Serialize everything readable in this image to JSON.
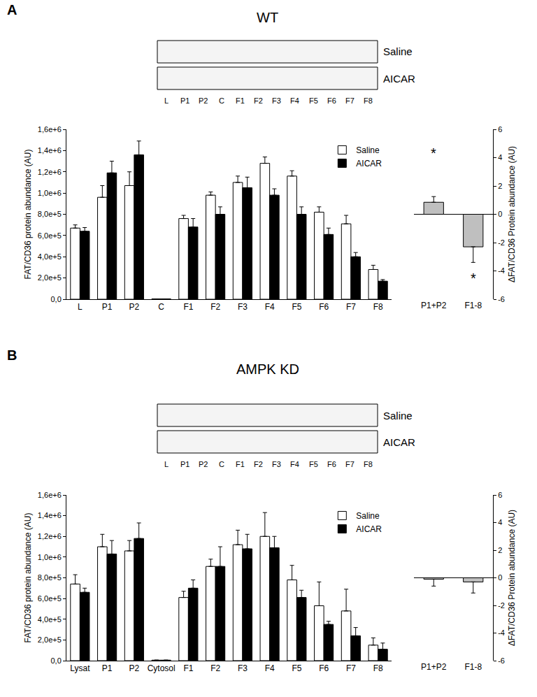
{
  "chart_data": [
    {
      "type": "bar",
      "panel": "A",
      "title": "WT",
      "blot_rows": [
        "Saline",
        "AICAR"
      ],
      "blot_lanes": [
        "L",
        "P1",
        "P2",
        "C",
        "F1",
        "F2",
        "F3",
        "F4",
        "F5",
        "F6",
        "F7",
        "F8"
      ],
      "categories": [
        "L",
        "P1",
        "P2",
        "C",
        "F1",
        "F2",
        "F3",
        "F4",
        "F5",
        "F6",
        "F7",
        "F8"
      ],
      "y_label": "FAT/CD36 protein abundance (AU)",
      "ylim": [
        0,
        1600000
      ],
      "yticks": [
        {
          "value": 0,
          "label": "0,0"
        },
        {
          "value": 200000,
          "label": "2,0e+5"
        },
        {
          "value": 400000,
          "label": "4,0e+5"
        },
        {
          "value": 600000,
          "label": "6,0e+5"
        },
        {
          "value": 800000,
          "label": "8,0e+5"
        },
        {
          "value": 1000000,
          "label": "1,0e+6"
        },
        {
          "value": 1200000,
          "label": "1,2e+6"
        },
        {
          "value": 1400000,
          "label": "1,4e+6"
        },
        {
          "value": 1600000,
          "label": "1,6e+6"
        }
      ],
      "legend": "upper right",
      "series": [
        {
          "name": "Saline",
          "color": "#ffffff",
          "values": [
            670000,
            960000,
            1070000,
            3000,
            760000,
            980000,
            1100000,
            1280000,
            1160000,
            820000,
            710000,
            280000
          ],
          "errors": [
            30000,
            110000,
            130000,
            0,
            30000,
            30000,
            60000,
            60000,
            50000,
            50000,
            80000,
            40000
          ]
        },
        {
          "name": "AICAR",
          "color": "#000000",
          "values": [
            640000,
            1190000,
            1360000,
            3000,
            680000,
            800000,
            1050000,
            980000,
            800000,
            610000,
            400000,
            170000
          ],
          "errors": [
            35000,
            110000,
            130000,
            0,
            80000,
            70000,
            100000,
            60000,
            70000,
            60000,
            40000,
            15000
          ]
        }
      ]
    },
    {
      "type": "bar",
      "panel": "A",
      "categories": [
        "P1+P2",
        "F1-8"
      ],
      "y_label": "ΔFAT/CD36 Protein abundance (AU)",
      "ylim": [
        -6,
        6
      ],
      "yticks": [
        -6,
        -4,
        -2,
        0,
        2,
        4,
        6
      ],
      "color": "#bfbfbf",
      "values": [
        0.85,
        -2.3
      ],
      "errors": [
        0.4,
        1.1
      ],
      "annotations": [
        {
          "text": "*",
          "category": "P1+P2",
          "y": 4.3
        },
        {
          "text": "*",
          "category": "F1-8",
          "y": -4.5
        }
      ]
    },
    {
      "type": "bar",
      "panel": "B",
      "title": "AMPK KD",
      "blot_rows": [
        "Saline",
        "AICAR"
      ],
      "blot_lanes": [
        "L",
        "P1",
        "P2",
        "C",
        "F1",
        "F2",
        "F3",
        "F4",
        "F5",
        "F6",
        "F7",
        "F8"
      ],
      "categories": [
        "Lysat",
        "P1",
        "P2",
        "Cytosol",
        "F1",
        "F2",
        "F3",
        "F4",
        "F5",
        "F6",
        "F7",
        "F8"
      ],
      "y_label": "FAT/CD36 protein abundance (AU)",
      "ylim": [
        0,
        1600000
      ],
      "yticks": [
        {
          "value": 0,
          "label": "0,0"
        },
        {
          "value": 200000,
          "label": "2,0e+5"
        },
        {
          "value": 400000,
          "label": "4,0e+5"
        },
        {
          "value": 600000,
          "label": "6,0e+5"
        },
        {
          "value": 800000,
          "label": "8,0e+5"
        },
        {
          "value": 1000000,
          "label": "1,0e+6"
        },
        {
          "value": 1200000,
          "label": "1,2e+6"
        },
        {
          "value": 1400000,
          "label": "1,4e+6"
        },
        {
          "value": 1600000,
          "label": "1,6e+6"
        }
      ],
      "legend": "upper right",
      "series": [
        {
          "name": "Saline",
          "color": "#ffffff",
          "values": [
            740000,
            1100000,
            1060000,
            5000,
            610000,
            910000,
            1120000,
            1200000,
            780000,
            530000,
            480000,
            150000
          ],
          "errors": [
            90000,
            120000,
            100000,
            0,
            60000,
            70000,
            140000,
            230000,
            140000,
            230000,
            210000,
            70000
          ]
        },
        {
          "name": "AICAR",
          "color": "#000000",
          "values": [
            660000,
            1030000,
            1180000,
            5000,
            700000,
            910000,
            1080000,
            1090000,
            610000,
            350000,
            240000,
            110000
          ],
          "errors": [
            40000,
            130000,
            150000,
            0,
            80000,
            190000,
            140000,
            110000,
            70000,
            30000,
            80000,
            60000
          ]
        }
      ]
    },
    {
      "type": "bar",
      "panel": "B",
      "categories": [
        "P1+P2",
        "F1-8"
      ],
      "y_label": "ΔFAT/CD36 Protein abundance (AU)",
      "ylim": [
        -6,
        6
      ],
      "yticks": [
        -6,
        -4,
        -2,
        0,
        2,
        4,
        6
      ],
      "color": "#bfbfbf",
      "values": [
        -0.1,
        -0.3
      ],
      "errors": [
        0.5,
        0.8
      ]
    }
  ]
}
